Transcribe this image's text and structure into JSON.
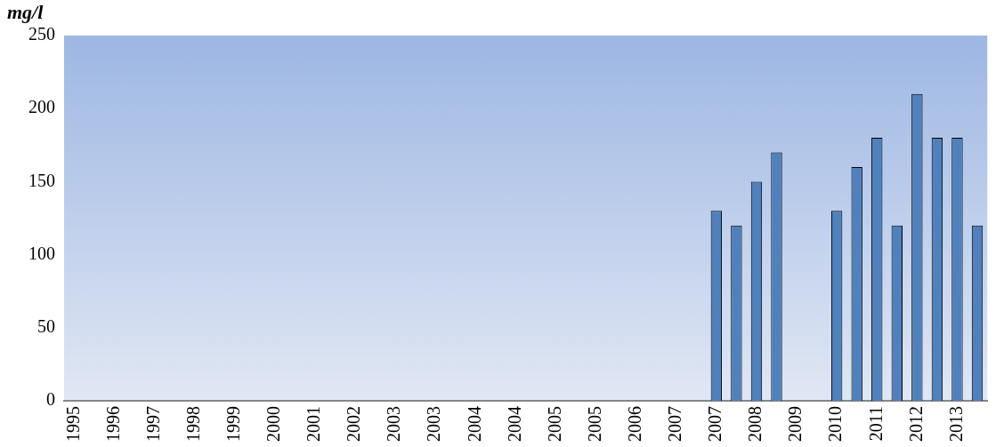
{
  "chart_data": {
    "type": "bar",
    "ylabel": "mg/l",
    "categories": [
      "1995",
      null,
      "1996",
      null,
      "1997",
      null,
      "1998",
      null,
      "1999",
      null,
      "2000",
      null,
      "2001",
      null,
      "2002",
      null,
      "2003",
      null,
      "2003",
      null,
      "2004",
      null,
      "2004",
      null,
      "2005",
      null,
      "2005",
      null,
      "2006",
      null,
      "2007",
      null,
      "2007",
      null,
      "2008",
      null,
      "2009",
      null,
      "2010",
      null,
      "2011",
      null,
      "2012",
      null,
      "2013",
      null
    ],
    "values": [
      null,
      null,
      null,
      null,
      null,
      null,
      null,
      null,
      null,
      null,
      null,
      null,
      null,
      null,
      null,
      null,
      null,
      null,
      null,
      null,
      null,
      null,
      null,
      null,
      null,
      null,
      null,
      null,
      null,
      null,
      null,
      null,
      130,
      120,
      150,
      170,
      null,
      null,
      130,
      160,
      180,
      120,
      210,
      180,
      180,
      120
    ],
    "color": "#4f81bd",
    "ylim": [
      0,
      250
    ],
    "yticks": [
      0,
      50,
      100,
      150,
      200,
      250
    ],
    "grid": false,
    "legend": false
  }
}
